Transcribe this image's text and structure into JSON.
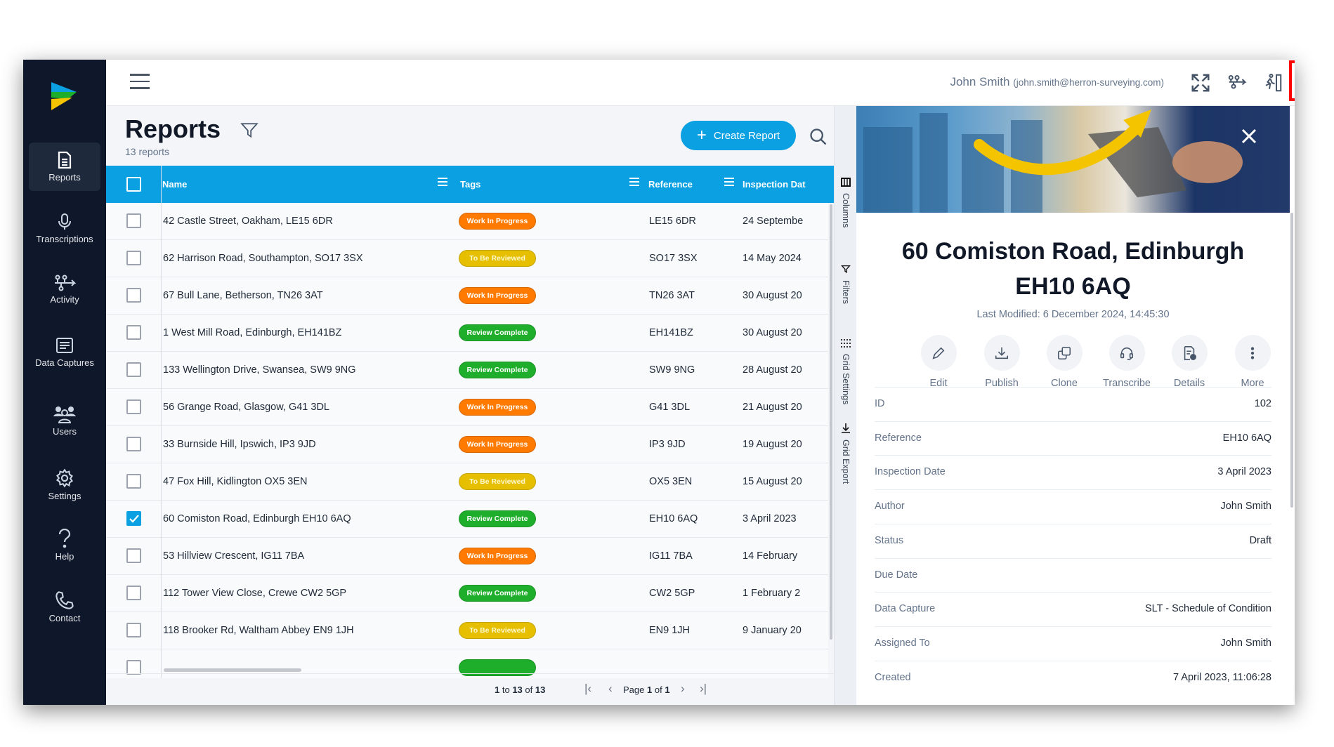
{
  "sidebar": {
    "items": [
      {
        "label": "Reports",
        "icon": "report-icon",
        "active": true
      },
      {
        "label": "Transcriptions",
        "icon": "microphone-icon"
      },
      {
        "label": "Activity",
        "icon": "activity-flow-icon"
      },
      {
        "label": "Data Captures",
        "icon": "data-capture-icon"
      },
      {
        "label": "Users",
        "icon": "users-icon"
      },
      {
        "label": "Settings",
        "icon": "gear-icon"
      },
      {
        "label": "Help",
        "icon": "help-icon"
      },
      {
        "label": "Contact",
        "icon": "phone-icon"
      }
    ]
  },
  "topbar": {
    "user_name": "John Smith",
    "user_email": "(john.smith@herron-surveying.com)",
    "icons": [
      "fullscreen-icon",
      "activity-flow-icon",
      "exit-icon"
    ],
    "highlight_color": "#ff0000"
  },
  "reports": {
    "title": "Reports",
    "count": "13 reports",
    "create_label": "Create Report"
  },
  "table": {
    "columns": [
      "Name",
      "Tags",
      "Reference",
      "Inspection Dat"
    ],
    "rows": [
      {
        "name": "42 Castle Street, Oakham, LE15 6DR",
        "tag": "Work In Progress",
        "ref": "LE15 6DR",
        "date": "24 Septembe",
        "checked": false
      },
      {
        "name": "62 Harrison Road, Southampton, SO17 3SX",
        "tag": "To Be Reviewed",
        "ref": "SO17 3SX",
        "date": "14 May 2024",
        "checked": false
      },
      {
        "name": "67 Bull Lane, Betherson, TN26 3AT",
        "tag": "Work In Progress",
        "ref": "TN26 3AT",
        "date": "30 August 20",
        "checked": false
      },
      {
        "name": "1 West Mill Road, Edinburgh, EH141BZ",
        "tag": "Review Complete",
        "ref": "EH141BZ",
        "date": "30 August 20",
        "checked": false
      },
      {
        "name": "133 Wellington Drive, Swansea, SW9 9NG",
        "tag": "Review Complete",
        "ref": "SW9 9NG",
        "date": "28 August 20",
        "checked": false
      },
      {
        "name": "56 Grange Road, Glasgow, G41 3DL",
        "tag": "Work In Progress",
        "ref": "G41 3DL",
        "date": "21 August 20",
        "checked": false
      },
      {
        "name": "33 Burnside Hill, Ipswich, IP3 9JD",
        "tag": "Work In Progress",
        "ref": "IP3 9JD",
        "date": "19 August 20",
        "checked": false
      },
      {
        "name": "47 Fox Hill, Kidlington OX5 3EN",
        "tag": "To Be Reviewed",
        "ref": "OX5 3EN",
        "date": "15 August 20",
        "checked": false
      },
      {
        "name": "60 Comiston Road, Edinburgh EH10 6AQ",
        "tag": "Review Complete",
        "ref": "EH10 6AQ",
        "date": "3 April 2023",
        "checked": true
      },
      {
        "name": "53 Hillview Crescent, IG11 7BA",
        "tag": "Work In Progress",
        "ref": "IG11 7BA",
        "date": "14 February",
        "checked": false
      },
      {
        "name": "112 Tower View Close, Crewe CW2 5GP",
        "tag": "Review Complete",
        "ref": "CW2 5GP",
        "date": "1 February 2",
        "checked": false
      },
      {
        "name": "118 Brooker Rd, Waltham Abbey EN9 1JH",
        "tag": "To Be Reviewed",
        "ref": "EN9 1JH",
        "date": "9 January 20",
        "checked": false
      }
    ],
    "tag_colors": {
      "Work In Progress": "#ff7a00",
      "To Be Reviewed": "#e6c000",
      "Review Complete": "#1fae2c"
    },
    "header_color": "#0aa0e2"
  },
  "pagination": {
    "from": "1",
    "to_label": "to",
    "to": "13",
    "of_label": "of",
    "total": "13",
    "page_label": "Page",
    "page": "1",
    "page_of": "of",
    "pages": "1"
  },
  "tool_strip": [
    "Columns",
    "Filters",
    "Grid Settings",
    "Grid Export"
  ],
  "detail": {
    "title_line1": "60 Comiston Road, Edinburgh",
    "title_line2": "EH10 6AQ",
    "last_modified": "Last Modified: 6 December 2024, 14:45:30",
    "actions": [
      {
        "label": "Edit",
        "icon": "pencil-icon"
      },
      {
        "label": "Publish",
        "icon": "download-icon"
      },
      {
        "label": "Clone",
        "icon": "clone-icon"
      },
      {
        "label": "Transcribe",
        "icon": "headset-icon"
      },
      {
        "label": "Details",
        "icon": "details-icon"
      },
      {
        "label": "More",
        "icon": "more-vertical-icon"
      }
    ],
    "fields": [
      {
        "k": "ID",
        "v": "102"
      },
      {
        "k": "Reference",
        "v": "EH10 6AQ"
      },
      {
        "k": "Inspection Date",
        "v": "3 April 2023"
      },
      {
        "k": "Author",
        "v": "John Smith"
      },
      {
        "k": "Status",
        "v": "Draft"
      },
      {
        "k": "Due Date",
        "v": ""
      },
      {
        "k": "Data Capture",
        "v": "SLT - Schedule of Condition"
      },
      {
        "k": "Assigned To",
        "v": "John Smith"
      },
      {
        "k": "Created",
        "v": "7 April 2023, 11:06:28"
      }
    ]
  }
}
